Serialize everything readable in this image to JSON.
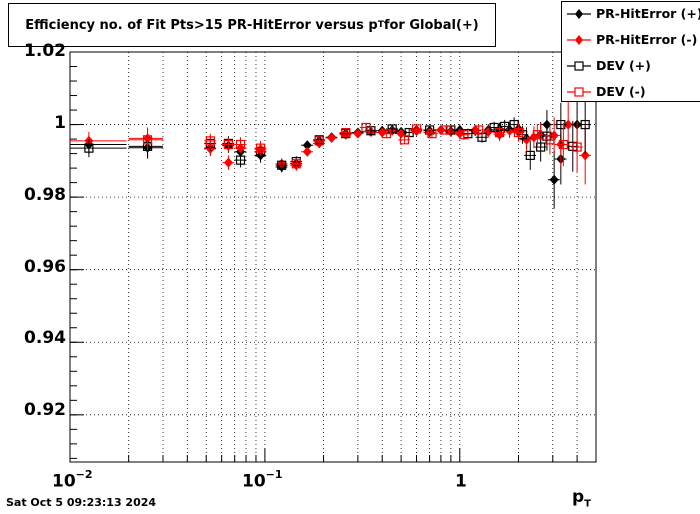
{
  "chart_data": {
    "type": "scatter",
    "title": "Efficiency no. of Fit Pts>15 PR-HitError versus p",
    "title_sub": "T",
    "title_suffix": " for Global(+)",
    "xlabel": "p",
    "xlabel_sub": "T",
    "x_scale": "log",
    "xlim": [
      0.01,
      5.0
    ],
    "ylim": [
      0.907,
      1.02
    ],
    "grid": true,
    "legend_position": "top-right",
    "yticks": [
      "0.92",
      "0.94",
      "0.96",
      "0.98",
      "1",
      "1.02"
    ],
    "ytick_values": [
      0.92,
      0.94,
      0.96,
      0.98,
      1.0,
      1.02
    ],
    "xticks": [
      {
        "value": 0.01,
        "base": "10",
        "exp": "−2"
      },
      {
        "value": 0.1,
        "base": "10",
        "exp": "−1"
      },
      {
        "value": 1,
        "base": "1",
        "exp": ""
      }
    ],
    "series": [
      {
        "name": "PR-HitError (+)",
        "marker": "filled-diamond",
        "color": "#000000",
        "points": [
          [
            0.0125,
            0.9945,
            0.0025
          ],
          [
            0.025,
            0.9936,
            0.003
          ],
          [
            0.0525,
            0.9935,
            0.002
          ],
          [
            0.065,
            0.9942,
            0.002
          ],
          [
            0.075,
            0.9925,
            0.002
          ],
          [
            0.095,
            0.9915,
            0.002
          ],
          [
            0.122,
            0.9883,
            0.0015
          ],
          [
            0.145,
            0.9893,
            0.0015
          ],
          [
            0.165,
            0.9943,
            0.001
          ],
          [
            0.19,
            0.9955,
            0.001
          ],
          [
            0.22,
            0.9965,
            0.001
          ],
          [
            0.26,
            0.9975,
            0.001
          ],
          [
            0.3,
            0.9978,
            0.001
          ],
          [
            0.35,
            0.998,
            0.001
          ],
          [
            0.4,
            0.9983,
            0.001
          ],
          [
            0.45,
            0.9985,
            0.001
          ],
          [
            0.5,
            0.998,
            0.001
          ],
          [
            0.6,
            0.9985,
            0.001
          ],
          [
            0.7,
            0.9983,
            0.0012
          ],
          [
            0.8,
            0.9985,
            0.0012
          ],
          [
            0.9,
            0.9982,
            0.0013
          ],
          [
            1.0,
            0.9985,
            0.0014
          ],
          [
            1.2,
            0.9983,
            0.0015
          ],
          [
            1.4,
            0.9985,
            0.0016
          ],
          [
            1.6,
            0.9987,
            0.0018
          ],
          [
            1.8,
            0.9986,
            0.002
          ],
          [
            2.0,
            0.9988,
            0.0025
          ],
          [
            2.2,
            0.9962,
            0.003
          ],
          [
            2.6,
            0.9972,
            0.0035
          ],
          [
            2.8,
            1.0,
            0.004
          ],
          [
            3.05,
            0.9848,
            0.008
          ],
          [
            3.3,
            0.9905,
            0.007
          ],
          [
            4.0,
            1.0,
            0.008
          ]
        ]
      },
      {
        "name": "PR-HitError (-)",
        "marker": "filled-diamond",
        "color": "#ff0000",
        "points": [
          [
            0.0125,
            0.9955,
            0.0025
          ],
          [
            0.025,
            0.9962,
            0.003
          ],
          [
            0.0525,
            0.9933,
            0.002
          ],
          [
            0.065,
            0.9895,
            0.002
          ],
          [
            0.075,
            0.9935,
            0.002
          ],
          [
            0.095,
            0.9932,
            0.002
          ],
          [
            0.122,
            0.9892,
            0.0015
          ],
          [
            0.145,
            0.9888,
            0.0015
          ],
          [
            0.165,
            0.9925,
            0.001
          ],
          [
            0.19,
            0.9948,
            0.001
          ],
          [
            0.22,
            0.9963,
            0.001
          ],
          [
            0.26,
            0.9972,
            0.001
          ],
          [
            0.3,
            0.9975,
            0.001
          ],
          [
            0.35,
            0.998,
            0.001
          ],
          [
            0.4,
            0.9978,
            0.001
          ],
          [
            0.45,
            0.9983,
            0.001
          ],
          [
            0.5,
            0.9975,
            0.001
          ],
          [
            0.6,
            0.9982,
            0.001
          ],
          [
            0.7,
            0.9978,
            0.0012
          ],
          [
            0.8,
            0.9985,
            0.0012
          ],
          [
            0.9,
            0.998,
            0.0013
          ],
          [
            1.0,
            0.9975,
            0.0014
          ],
          [
            1.2,
            0.9985,
            0.0015
          ],
          [
            1.4,
            0.998,
            0.0016
          ],
          [
            1.6,
            0.9972,
            0.0018
          ],
          [
            1.8,
            0.9983,
            0.002
          ],
          [
            2.0,
            0.998,
            0.0025
          ],
          [
            2.2,
            0.9958,
            0.003
          ],
          [
            2.4,
            0.9965,
            0.003
          ],
          [
            2.6,
            0.997,
            0.0035
          ],
          [
            3.05,
            0.997,
            0.005
          ],
          [
            3.3,
            0.9945,
            0.006
          ],
          [
            3.6,
            1.0,
            0.007
          ],
          [
            4.4,
            0.9915,
            0.008
          ]
        ]
      },
      {
        "name": "DEV (+)",
        "marker": "open-square",
        "color": "#000000",
        "points": [
          [
            0.0125,
            0.9935,
            0.0025
          ],
          [
            0.025,
            0.994,
            0.003
          ],
          [
            0.0525,
            0.9948,
            0.002
          ],
          [
            0.065,
            0.9948,
            0.002
          ],
          [
            0.075,
            0.9902,
            0.002
          ],
          [
            0.095,
            0.9925,
            0.002
          ],
          [
            0.122,
            0.9888,
            0.0015
          ],
          [
            0.145,
            0.9898,
            0.0015
          ],
          [
            0.19,
            0.9958,
            0.001
          ],
          [
            0.26,
            0.9975,
            0.001
          ],
          [
            0.35,
            0.9983,
            0.001
          ],
          [
            0.45,
            0.9988,
            0.001
          ],
          [
            0.55,
            0.9978,
            0.001
          ],
          [
            0.7,
            0.9985,
            0.0012
          ],
          [
            0.9,
            0.9985,
            0.0013
          ],
          [
            1.1,
            0.9975,
            0.0014
          ],
          [
            1.3,
            0.9965,
            0.0015
          ],
          [
            1.5,
            0.9992,
            0.0016
          ],
          [
            1.7,
            0.9995,
            0.0018
          ],
          [
            1.9,
            1.0,
            0.002
          ],
          [
            2.1,
            0.9972,
            0.0025
          ],
          [
            2.3,
            0.9915,
            0.004
          ],
          [
            2.6,
            0.9938,
            0.004
          ],
          [
            2.8,
            0.9968,
            0.004
          ],
          [
            3.3,
            1.0,
            0.006
          ],
          [
            3.8,
            0.994,
            0.007
          ],
          [
            4.4,
            1.0,
            0.008
          ]
        ]
      },
      {
        "name": "DEV (-)",
        "marker": "open-square",
        "color": "#ff0000",
        "points": [
          [
            0.025,
            0.9958,
            0.003
          ],
          [
            0.0525,
            0.9955,
            0.002
          ],
          [
            0.065,
            0.9945,
            0.002
          ],
          [
            0.075,
            0.9945,
            0.002
          ],
          [
            0.095,
            0.9935,
            0.002
          ],
          [
            0.145,
            0.9892,
            0.0015
          ],
          [
            0.19,
            0.9955,
            0.001
          ],
          [
            0.26,
            0.9978,
            0.001
          ],
          [
            0.33,
            0.9992,
            0.001
          ],
          [
            0.42,
            0.9975,
            0.001
          ],
          [
            0.52,
            0.9958,
            0.001
          ],
          [
            0.6,
            0.9988,
            0.001
          ],
          [
            0.72,
            0.9975,
            0.0012
          ],
          [
            0.85,
            0.9985,
            0.0013
          ],
          [
            1.05,
            0.9972,
            0.0014
          ],
          [
            1.25,
            0.9985,
            0.0015
          ],
          [
            1.6,
            0.9978,
            0.0018
          ],
          [
            2.0,
            0.9978,
            0.0025
          ],
          [
            2.5,
            0.9972,
            0.003
          ],
          [
            2.9,
            0.9958,
            0.004
          ],
          [
            3.4,
            0.9945,
            0.006
          ],
          [
            4.0,
            0.9938,
            0.007
          ]
        ]
      }
    ]
  },
  "datestamp": "Sat Oct  5 09:23:13 2024"
}
